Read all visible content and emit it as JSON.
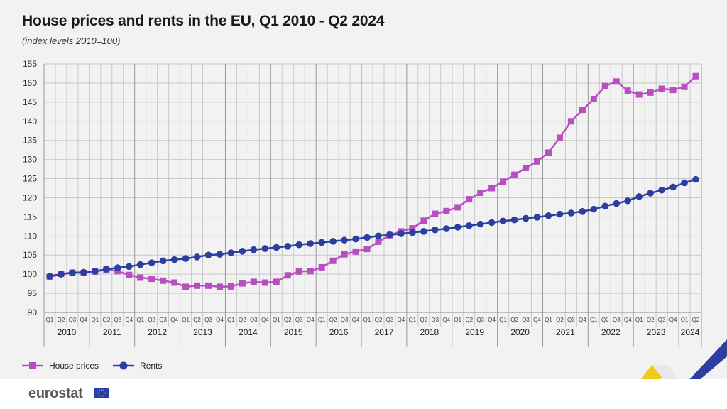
{
  "header": {
    "title": "House prices and rents in the EU, Q1 2010 - Q2 2024",
    "subtitle": "(index levels 2010=100)"
  },
  "legend": {
    "house_label": "House prices",
    "rents_label": "Rents"
  },
  "footer": {
    "brand": "eurostat"
  },
  "colors": {
    "house_prices": "#b84fc0",
    "rents": "#2a3fa0",
    "grid": "#c8c8c8",
    "deco_yellow": "#f2c500",
    "deco_blue": "#2a3fa0"
  },
  "chart_data": {
    "type": "line",
    "ylim": [
      90,
      155
    ],
    "yticks": [
      90,
      95,
      100,
      105,
      110,
      115,
      120,
      125,
      130,
      135,
      140,
      145,
      150,
      155
    ],
    "years": [
      "2010",
      "2011",
      "2012",
      "2013",
      "2014",
      "2015",
      "2016",
      "2017",
      "2018",
      "2019",
      "2020",
      "2021",
      "2022",
      "2023",
      "2024"
    ],
    "quarters": [
      "Q1",
      "Q2",
      "Q3",
      "Q4"
    ],
    "grid": true,
    "legend_position": "bottom-left",
    "series": [
      {
        "name": "House prices",
        "marker": "square",
        "values": [
          99.2,
          100.1,
          100.4,
          100.3,
          100.7,
          101.2,
          100.8,
          99.8,
          99.1,
          98.8,
          98.3,
          97.8,
          96.7,
          97.0,
          97.0,
          96.7,
          96.8,
          97.6,
          98.0,
          97.8,
          98.0,
          99.7,
          100.7,
          100.8,
          101.8,
          103.5,
          105.2,
          105.9,
          106.6,
          108.5,
          110.2,
          111.2,
          112.0,
          114.0,
          115.8,
          116.5,
          117.5,
          119.6,
          121.3,
          122.5,
          124.2,
          126.0,
          127.8,
          129.5,
          131.8,
          135.7,
          140.0,
          143.0,
          145.8,
          149.2,
          150.4,
          148.0,
          147.0,
          147.5,
          148.5,
          148.2,
          149.0,
          151.8
        ]
      },
      {
        "name": "Rents",
        "marker": "circle",
        "values": [
          99.5,
          100.0,
          100.4,
          100.5,
          100.8,
          101.3,
          101.7,
          102.0,
          102.5,
          103.0,
          103.5,
          103.8,
          104.1,
          104.5,
          105.0,
          105.2,
          105.6,
          106.0,
          106.4,
          106.7,
          107.0,
          107.3,
          107.7,
          108.0,
          108.3,
          108.6,
          108.9,
          109.2,
          109.6,
          110.0,
          110.3,
          110.6,
          110.9,
          111.2,
          111.6,
          111.9,
          112.3,
          112.7,
          113.1,
          113.5,
          113.9,
          114.2,
          114.6,
          114.9,
          115.3,
          115.7,
          116.0,
          116.4,
          117.0,
          117.8,
          118.5,
          119.2,
          120.3,
          121.2,
          122.0,
          122.8,
          123.9,
          124.8
        ]
      }
    ]
  }
}
